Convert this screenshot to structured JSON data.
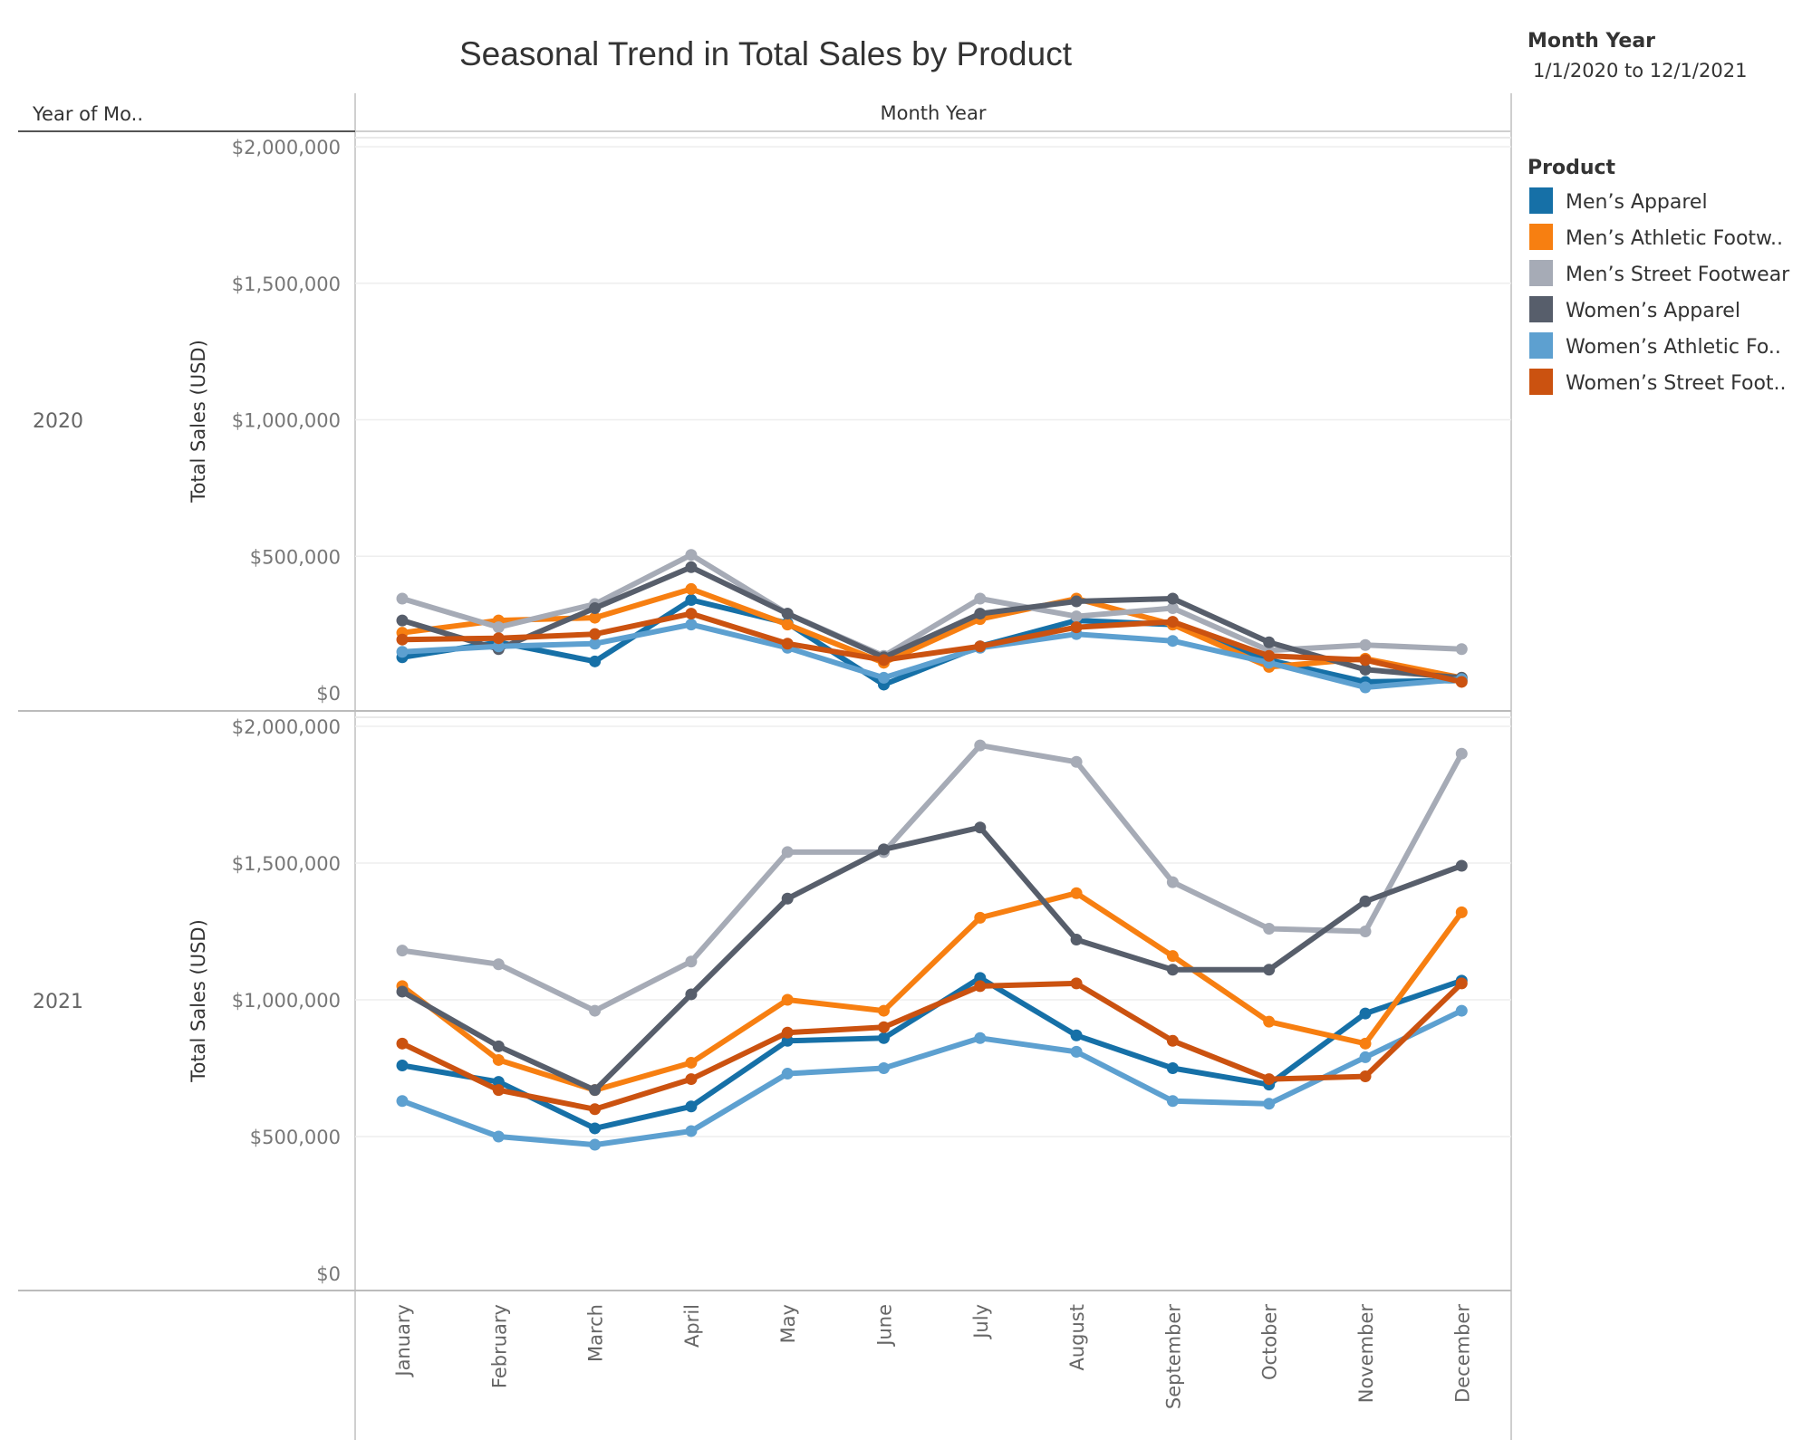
{
  "chart_data": {
    "type": "line",
    "title": "Seasonal Trend in Total Sales by Product",
    "column_header": "Month Year",
    "row_header": "Year of Mo..",
    "ylabel": "Total Sales (USD)",
    "ylim": [
      0,
      2000000
    ],
    "yticks": [
      "$0",
      "$500,000",
      "$1,000,000",
      "$1,500,000",
      "$2,000,000"
    ],
    "grid": true,
    "legend_position": "right",
    "legend_title": "Product",
    "filter": {
      "title": "Month Year",
      "value": "1/1/2020 to 12/1/2021"
    },
    "categories": [
      "January",
      "February",
      "March",
      "April",
      "May",
      "June",
      "July",
      "August",
      "September",
      "October",
      "November",
      "December"
    ],
    "series_meta": [
      {
        "name": "Men’s Apparel",
        "color": "#1670a7"
      },
      {
        "name": "Men’s Athletic Footw..",
        "color": "#f77f11"
      },
      {
        "name": "Men’s Street Footwear",
        "color": "#a6abb6"
      },
      {
        "name": "Women’s Apparel",
        "color": "#575e6b"
      },
      {
        "name": "Women’s Athletic Fo..",
        "color": "#5da0d0"
      },
      {
        "name": "Women’s Street Foot..",
        "color": "#cb5210"
      }
    ],
    "panels": [
      {
        "year": "2020",
        "series": [
          {
            "name": "Men’s Apparel",
            "values": [
              130000,
              185000,
              115000,
              340000,
              255000,
              30000,
              170000,
              265000,
              250000,
              120000,
              40000,
              45000
            ]
          },
          {
            "name": "Men’s Athletic Footw..",
            "values": [
              220000,
              265000,
              275000,
              380000,
              250000,
              110000,
              270000,
              345000,
              250000,
              95000,
              125000,
              55000
            ]
          },
          {
            "name": "Men’s Street Footwear",
            "values": [
              345000,
              240000,
              325000,
              505000,
              290000,
              135000,
              345000,
              280000,
              310000,
              155000,
              175000,
              160000
            ]
          },
          {
            "name": "Women’s Apparel",
            "values": [
              265000,
              160000,
              310000,
              460000,
              290000,
              130000,
              290000,
              335000,
              345000,
              185000,
              85000,
              55000
            ]
          },
          {
            "name": "Women’s Athletic Fo..",
            "values": [
              150000,
              170000,
              180000,
              250000,
              165000,
              55000,
              165000,
              215000,
              190000,
              110000,
              20000,
              50000
            ]
          },
          {
            "name": "Women’s Street Foot..",
            "values": [
              195000,
              200000,
              215000,
              290000,
              180000,
              120000,
              170000,
              240000,
              260000,
              135000,
              120000,
              40000
            ]
          }
        ]
      },
      {
        "year": "2021",
        "series": [
          {
            "name": "Men’s Apparel",
            "values": [
              760000,
              700000,
              530000,
              610000,
              850000,
              860000,
              1080000,
              870000,
              750000,
              690000,
              950000,
              1070000
            ]
          },
          {
            "name": "Men’s Athletic Footw..",
            "values": [
              1050000,
              780000,
              670000,
              770000,
              1000000,
              960000,
              1300000,
              1390000,
              1160000,
              920000,
              840000,
              1320000
            ]
          },
          {
            "name": "Men’s Street Footwear",
            "values": [
              1180000,
              1130000,
              960000,
              1140000,
              1540000,
              1540000,
              1930000,
              1870000,
              1430000,
              1260000,
              1250000,
              1900000
            ]
          },
          {
            "name": "Women’s Apparel",
            "values": [
              1030000,
              830000,
              670000,
              1020000,
              1370000,
              1550000,
              1630000,
              1220000,
              1110000,
              1110000,
              1360000,
              1490000
            ]
          },
          {
            "name": "Women’s Athletic Fo..",
            "values": [
              630000,
              500000,
              470000,
              520000,
              730000,
              750000,
              860000,
              810000,
              630000,
              620000,
              790000,
              960000
            ]
          },
          {
            "name": "Women’s Street Foot..",
            "values": [
              840000,
              670000,
              600000,
              710000,
              880000,
              900000,
              1050000,
              1060000,
              850000,
              710000,
              720000,
              1060000
            ]
          }
        ]
      }
    ]
  }
}
